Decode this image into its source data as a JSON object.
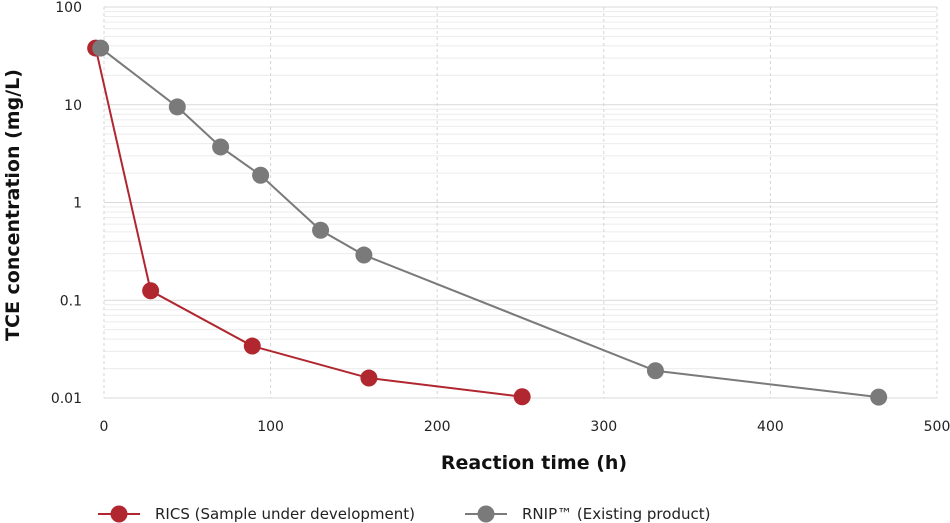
{
  "chart_data": {
    "type": "line",
    "xlabel": "Reaction time (h)",
    "ylabel": "TCE concentration (mg/L)",
    "xlim": [
      0,
      500
    ],
    "ylim": [
      0.01,
      100
    ],
    "yscale": "log",
    "x_ticks": [
      0,
      100,
      200,
      300,
      400,
      500
    ],
    "x_tick_labels": [
      "0",
      "100",
      "200",
      "300",
      "400",
      "500"
    ],
    "y_ticks": [
      0.01,
      0.1,
      1,
      10,
      100
    ],
    "y_tick_labels": [
      "0.01",
      "0.1",
      "1",
      "10",
      "100"
    ],
    "grid": true,
    "legend_position": "bottom",
    "series": [
      {
        "name": "RICS (Sample under development)",
        "color": "#b0272f",
        "x": [
          -5,
          28,
          89,
          159,
          251
        ],
        "y": [
          38,
          0.125,
          0.034,
          0.016,
          0.0103
        ]
      },
      {
        "name": "RNIP™ (Existing product)",
        "color": "#7a7a7a",
        "x": [
          -2,
          44,
          70,
          94,
          130,
          156,
          331,
          465
        ],
        "y": [
          38,
          9.5,
          3.7,
          1.9,
          0.52,
          0.29,
          0.019,
          0.0102
        ]
      }
    ]
  }
}
